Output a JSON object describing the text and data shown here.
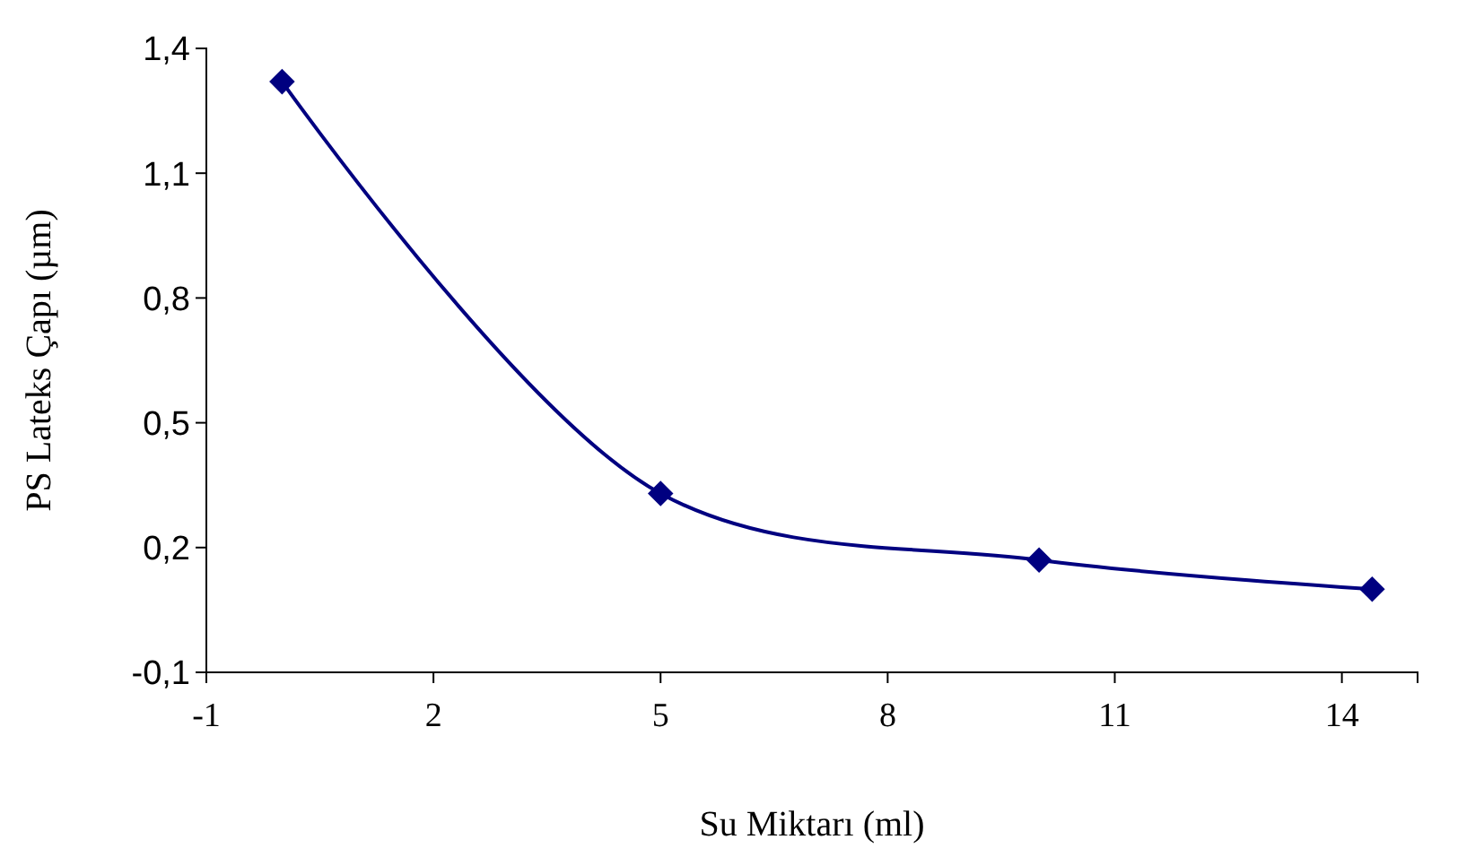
{
  "chart_data": {
    "type": "line",
    "xlabel": "Su Miktarı (ml)",
    "ylabel": "PS Lateks Çapı (µm)",
    "x": [
      0,
      5,
      10,
      14.4
    ],
    "series": [
      {
        "color": "#000080",
        "values": [
          1.32,
          0.33,
          0.17,
          0.1
        ]
      }
    ],
    "xlim": [
      -1,
      15
    ],
    "xticks": [
      -1,
      2,
      5,
      8,
      11,
      14
    ],
    "ylim": [
      -0.1,
      1.4
    ],
    "yticks": [
      {
        "value": 1.4,
        "label": "1,4"
      },
      {
        "value": 1.1,
        "label": "1,1"
      },
      {
        "value": 0.8,
        "label": "0,8"
      },
      {
        "value": 0.5,
        "label": "0,5"
      },
      {
        "value": 0.2,
        "label": "0,2"
      },
      {
        "value": -0.1,
        "label": "-0,1"
      }
    ],
    "grid": false,
    "marker": "diamond",
    "line_style": "solid"
  }
}
